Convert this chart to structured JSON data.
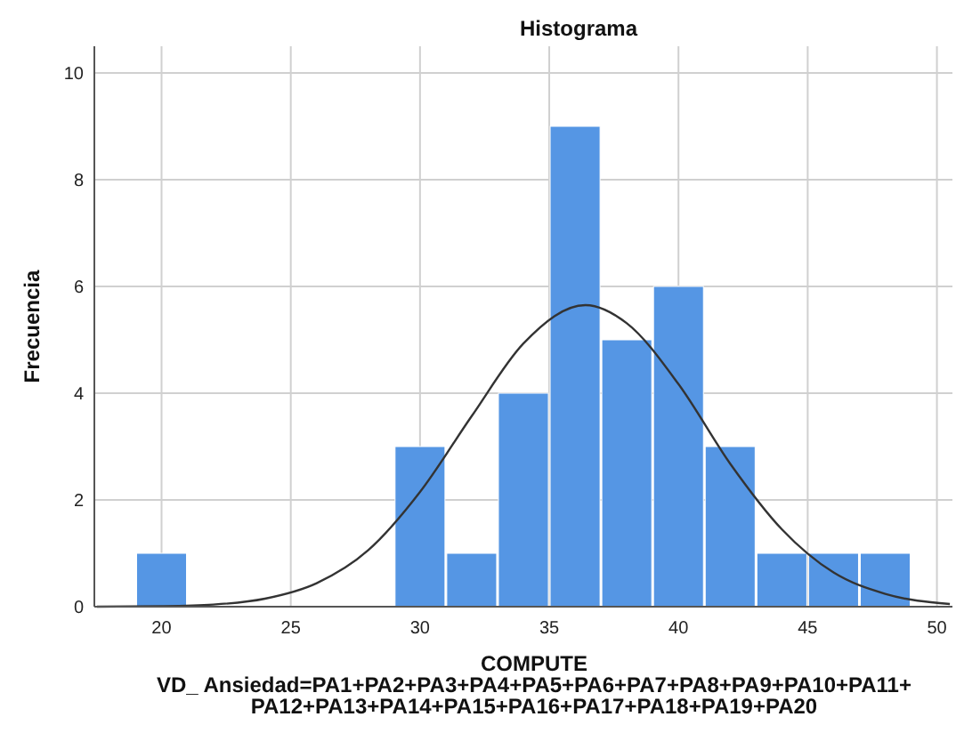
{
  "chart_data": {
    "type": "histogram",
    "title": "Histograma",
    "xlabel": "COMPUTE VD_ Ansiedad=PA1+PA2+PA3+PA4+PA5+PA6+PA7+PA8+PA9+PA10+PA11+PA12+PA13+PA14+PA15+PA16+PA17+PA18+PA19+PA20",
    "ylabel": "Frecuencia",
    "bins": [
      19,
      21,
      23,
      25,
      27,
      29,
      31,
      33,
      35,
      37,
      39,
      41,
      43,
      45,
      47,
      49
    ],
    "values": [
      1,
      0,
      0,
      0,
      0,
      3,
      1,
      4,
      9,
      5,
      6,
      3,
      1,
      1,
      1
    ],
    "color": "#5596e4",
    "series": [
      {
        "type": "line",
        "color": "#333333",
        "x": [
          17.5,
          20,
          22,
          24,
          26,
          28,
          30,
          32,
          34,
          36.4,
          38,
          40,
          42,
          44,
          46,
          48,
          50.5
        ],
        "values": [
          0.0,
          0.01,
          0.04,
          0.15,
          0.44,
          1.06,
          2.15,
          3.57,
          4.93,
          5.65,
          5.31,
          4.17,
          2.68,
          1.45,
          0.64,
          0.24,
          0.05
        ]
      }
    ],
    "xlim": [
      17.4,
      50.6
    ],
    "ylim": [
      0,
      10.5
    ],
    "xticks": [
      20,
      25,
      30,
      35,
      40,
      45,
      50
    ],
    "yticks": [
      0,
      2,
      4,
      6,
      8,
      10
    ],
    "grid": true
  }
}
